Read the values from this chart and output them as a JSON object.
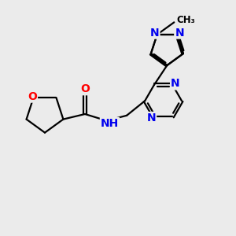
{
  "bg_color": "#ebebeb",
  "bond_color": "#000000",
  "bond_width": 1.6,
  "atom_colors": {
    "O": "#ff0000",
    "N": "#0000ee",
    "C": "#000000"
  },
  "font_size_atom": 10,
  "title": ""
}
